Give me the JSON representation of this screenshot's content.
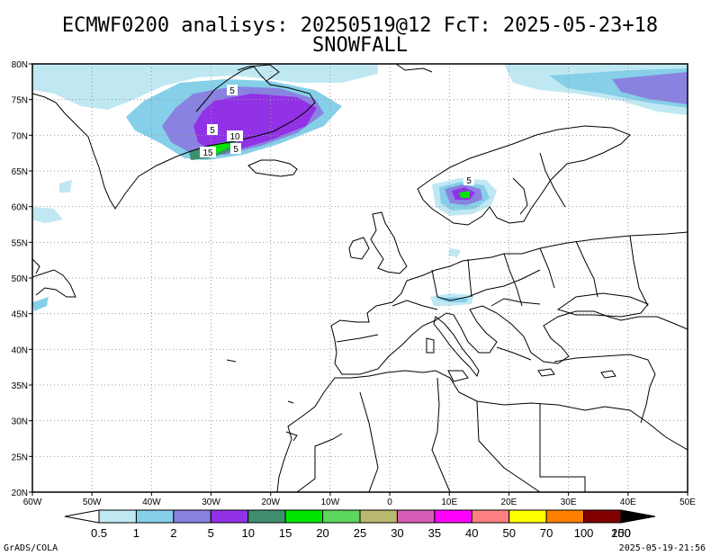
{
  "header": {
    "title": "ECMWF0200 analisys: 20250519@12 FcT: 2025-05-23+18",
    "subtitle": "SNOWFALL"
  },
  "map": {
    "lat_labels": [
      "80N",
      "75N",
      "70N",
      "65N",
      "60N",
      "55N",
      "50N",
      "45N",
      "40N",
      "35N",
      "30N",
      "25N",
      "20N"
    ],
    "lat_values": [
      80,
      75,
      70,
      65,
      60,
      55,
      50,
      45,
      40,
      35,
      30,
      25,
      20
    ],
    "lon_labels": [
      "60W",
      "50W",
      "40W",
      "30W",
      "20W",
      "10W",
      "0",
      "10E",
      "20E",
      "30E",
      "40E",
      "50E"
    ],
    "lon_values": [
      -60,
      -50,
      -40,
      -30,
      -20,
      -10,
      0,
      10,
      20,
      30,
      40,
      50
    ],
    "contour_labels": [
      "5",
      "5",
      "10",
      "5",
      "15",
      "5"
    ],
    "grid": true
  },
  "colorbar": {
    "levels": [
      "0.5",
      "1",
      "2",
      "5",
      "10",
      "15",
      "20",
      "25",
      "30",
      "35",
      "40",
      "50",
      "70",
      "100",
      "150",
      "200"
    ],
    "colors": [
      "#bfe8f3",
      "#86cfe8",
      "#8a82e0",
      "#9232e6",
      "#3f8f6e",
      "#00e600",
      "#5cd65c",
      "#b9b86f",
      "#d65cb5",
      "#ff00ff",
      "#ff8080",
      "#ffff00",
      "#ff8000",
      "#ff0000",
      "#800000",
      "#000000"
    ]
  },
  "footer": {
    "left": "GrADS/COLA",
    "right": "2025-05-19-21:56"
  }
}
